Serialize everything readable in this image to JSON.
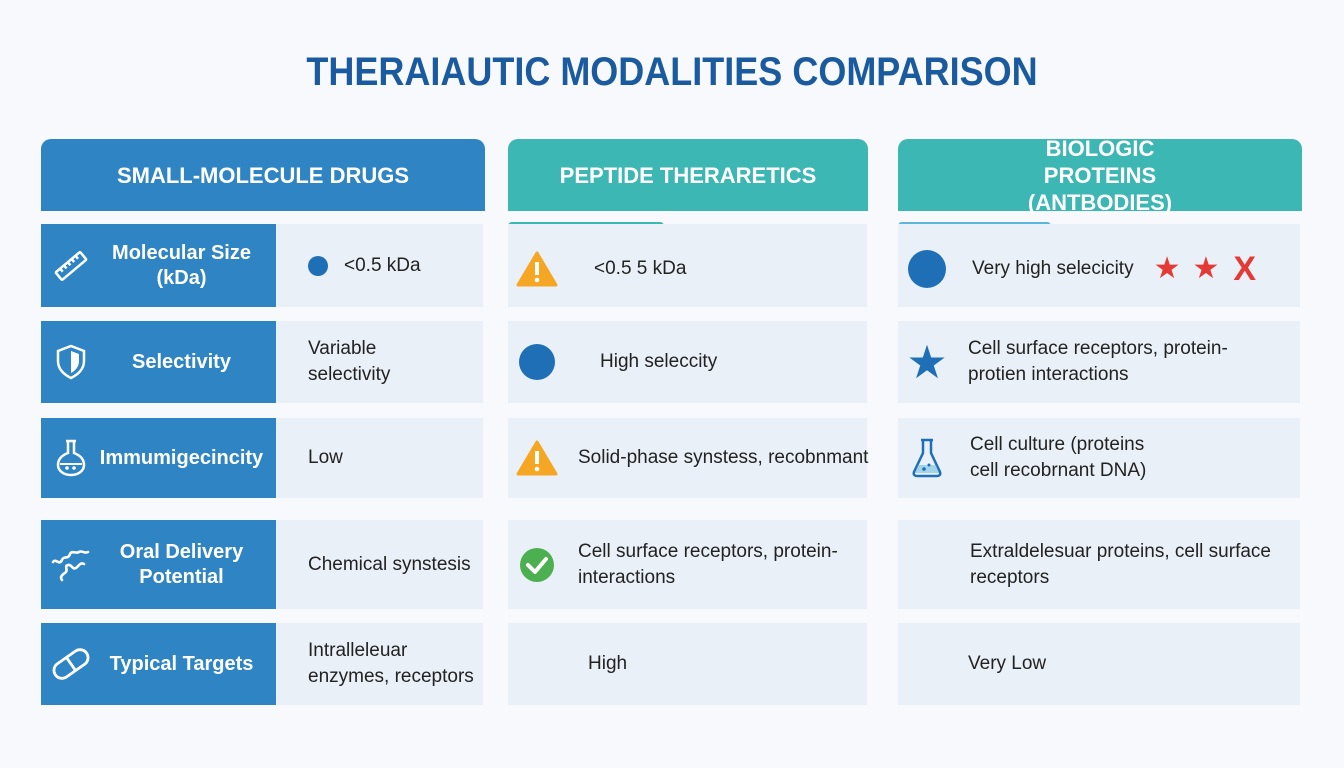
{
  "title": "THERAIAUTIC MODALITIES COMPARISON",
  "columns": [
    "SMALL-MOLECULE DRUGS",
    "PEPTIDE THERARETICS",
    "BIOLOGIC PROTEINS (ANTBODIES)"
  ],
  "rows": [
    {
      "label": "Molecular Size (kDa)",
      "icon": "ruler-icon",
      "small": "<0.5 kDa",
      "peptide": "<0.5 5 kDa",
      "biologic": "Very high selecicity"
    },
    {
      "label": "Selectivity",
      "icon": "shield-icon",
      "small": "Variable selectivity",
      "peptide": "High seleccity",
      "biologic": "Cell surface receptors, protein-protien interactions"
    },
    {
      "label": "Immumigecincity",
      "icon": "flask-icon",
      "small": "Low",
      "peptide": "Solid-phase synstess, recobnmant",
      "biologic": "Cell culture (proteins cell recobrnant DNA)"
    },
    {
      "label": "Oral Delivery Potential",
      "icon": "squiggle-icon",
      "small": "Chemical synstesis",
      "peptide": "Cell surface receptors, protein-interactions",
      "biologic": "Extraldelesuar proteins, cell surface receptors"
    },
    {
      "label": "Typical Targets",
      "icon": "pill-icon",
      "small": "Intralleleuar enzymes, receptors",
      "peptide": "High",
      "biologic": "Very Low"
    }
  ],
  "colors": {
    "blue": "#2f84c3",
    "teal": "#3db7b3",
    "warning": "#f5a623",
    "red": "#e53935",
    "green": "#4caf50"
  }
}
